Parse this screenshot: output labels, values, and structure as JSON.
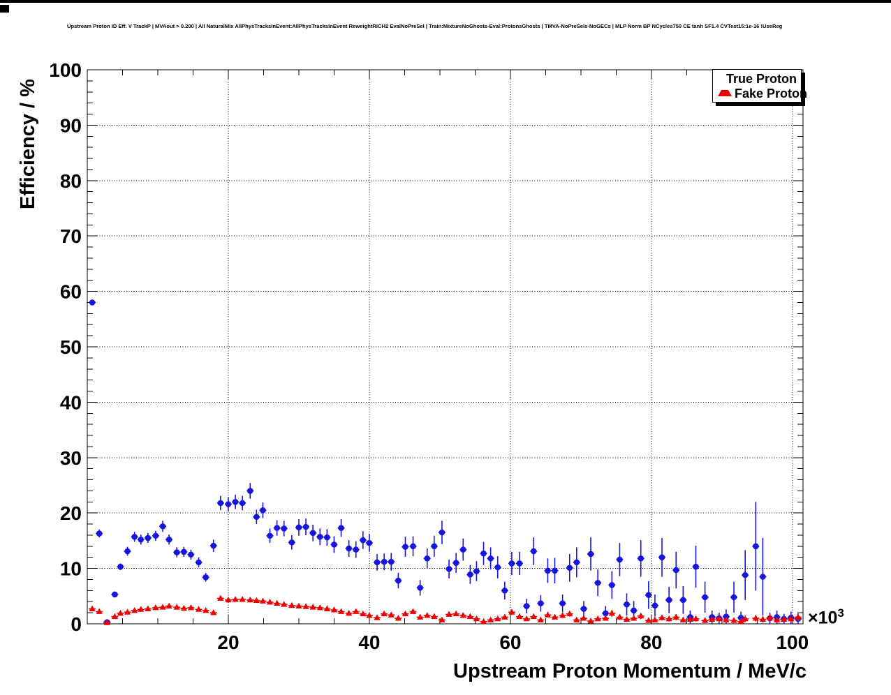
{
  "plot_title": "Upstream Proton ID Eff. V TrackP | MVAout > 0.200 | All NaturalMix AllPhysTracksInEvent:AllPhysTracksInEvent ReweightRICH2 EvalNoPreSel | Train:MixtureNoGhosts-Eval:ProtonsGhosts | TMVA-NoPreSels-NoGECs | MLP Norm BP NCycles750 CE tanh SF1.4 CVTest15:1e-16 !UseReg",
  "colors": {
    "true_proton": "#1515dd",
    "fake_proton": "#ee0000",
    "axis": "#000000",
    "background": "#ffffff"
  },
  "legend": {
    "entries": [
      {
        "label": "True Proton",
        "marker": "circle-icon",
        "color": "#1515dd"
      },
      {
        "label": "Fake Proton",
        "marker": "triangle-icon",
        "color": "#ee0000"
      }
    ]
  },
  "chart_data": {
    "type": "scatter",
    "title": "Upstream Proton ID Eff. V TrackP | MVAout > 0.200",
    "xlabel": "Upstream Proton Momentum / MeV/c",
    "ylabel": "Efficiency / %",
    "x_multiplier": "×10",
    "x_multiplier_exp": "3",
    "xlim": [
      0,
      101.5
    ],
    "ylim": [
      0,
      100
    ],
    "x_ticks": [
      20,
      40,
      60,
      80,
      100
    ],
    "y_ticks": [
      0,
      10,
      20,
      30,
      40,
      50,
      60,
      70,
      80,
      90,
      100
    ],
    "x_minor_step": 5,
    "y_minor_step": 2,
    "grid": true,
    "legend_position": "top-right",
    "series": [
      {
        "name": "True Proton",
        "marker": "circle",
        "color": "#1515dd",
        "points": [
          [
            0.7,
            58.0,
            0.5
          ],
          [
            1.7,
            16.3,
            0.7
          ],
          [
            2.8,
            0.3,
            0.3
          ],
          [
            3.9,
            5.3,
            0.5
          ],
          [
            4.7,
            10.3,
            0.6
          ],
          [
            5.7,
            13.1,
            0.8
          ],
          [
            6.7,
            15.7,
            0.9
          ],
          [
            7.6,
            15.2,
            0.9
          ],
          [
            8.6,
            15.5,
            0.9
          ],
          [
            9.7,
            15.9,
            0.9
          ],
          [
            10.7,
            17.6,
            1.0
          ],
          [
            11.6,
            15.2,
            0.9
          ],
          [
            12.7,
            12.9,
            0.9
          ],
          [
            13.7,
            13.0,
            0.9
          ],
          [
            14.7,
            12.5,
            0.9
          ],
          [
            15.8,
            11.1,
            0.9
          ],
          [
            16.8,
            8.4,
            0.8
          ],
          [
            17.9,
            14.1,
            1.1
          ],
          [
            18.9,
            21.8,
            1.3
          ],
          [
            20.0,
            21.6,
            1.3
          ],
          [
            21.0,
            22.0,
            1.3
          ],
          [
            22.0,
            21.8,
            1.3
          ],
          [
            23.1,
            24.0,
            1.4
          ],
          [
            24.0,
            19.3,
            1.3
          ],
          [
            24.9,
            20.5,
            1.4
          ],
          [
            25.9,
            15.9,
            1.3
          ],
          [
            26.9,
            17.3,
            1.4
          ],
          [
            27.9,
            17.2,
            1.4
          ],
          [
            29.0,
            14.7,
            1.3
          ],
          [
            30.0,
            17.4,
            1.5
          ],
          [
            31.0,
            17.5,
            1.5
          ],
          [
            32.0,
            16.4,
            1.5
          ],
          [
            33.0,
            15.7,
            1.5
          ],
          [
            34.0,
            15.6,
            1.5
          ],
          [
            35.0,
            14.3,
            1.5
          ],
          [
            36.0,
            17.3,
            1.6
          ],
          [
            37.1,
            13.6,
            1.5
          ],
          [
            38.1,
            13.4,
            1.5
          ],
          [
            39.1,
            15.1,
            1.6
          ],
          [
            40.0,
            14.6,
            1.6
          ],
          [
            41.1,
            11.1,
            1.5
          ],
          [
            42.1,
            11.2,
            1.5
          ],
          [
            43.1,
            11.2,
            1.6
          ],
          [
            44.1,
            7.8,
            1.4
          ],
          [
            45.1,
            13.9,
            1.8
          ],
          [
            46.2,
            14.0,
            1.8
          ],
          [
            47.2,
            6.5,
            1.4
          ],
          [
            48.2,
            11.8,
            1.8
          ],
          [
            49.2,
            14.0,
            1.9
          ],
          [
            50.3,
            16.5,
            2.1
          ],
          [
            51.3,
            9.9,
            1.7
          ],
          [
            52.3,
            11.0,
            1.8
          ],
          [
            53.3,
            13.4,
            2.0
          ],
          [
            54.3,
            8.9,
            1.7
          ],
          [
            55.2,
            9.5,
            1.8
          ],
          [
            56.2,
            12.7,
            2.1
          ],
          [
            57.2,
            11.8,
            2.0
          ],
          [
            58.2,
            10.2,
            2.0
          ],
          [
            59.2,
            6.0,
            1.6
          ],
          [
            60.2,
            10.9,
            2.1
          ],
          [
            61.3,
            10.9,
            2.1
          ],
          [
            62.3,
            3.2,
            1.3
          ],
          [
            63.3,
            13.1,
            2.5
          ],
          [
            64.3,
            3.7,
            1.5
          ],
          [
            65.3,
            9.6,
            2.2
          ],
          [
            66.3,
            9.6,
            2.3
          ],
          [
            67.4,
            3.7,
            1.6
          ],
          [
            68.4,
            10.1,
            2.5
          ],
          [
            69.4,
            11.1,
            2.7
          ],
          [
            70.4,
            2.7,
            1.4
          ],
          [
            71.4,
            12.6,
            3.0
          ],
          [
            72.4,
            7.4,
            2.4
          ],
          [
            73.5,
            1.9,
            1.3
          ],
          [
            74.4,
            7.0,
            2.5
          ],
          [
            75.5,
            11.6,
            3.0
          ],
          [
            76.5,
            3.5,
            2.0
          ],
          [
            77.5,
            2.4,
            1.7
          ],
          [
            78.5,
            11.8,
            3.3
          ],
          [
            79.6,
            5.2,
            2.5
          ],
          [
            80.5,
            3.3,
            2.0
          ],
          [
            81.5,
            12.0,
            3.5
          ],
          [
            82.5,
            4.3,
            2.4
          ],
          [
            83.5,
            9.7,
            3.3
          ],
          [
            84.5,
            4.3,
            2.5
          ],
          [
            85.5,
            1.2,
            1.2
          ],
          [
            86.3,
            10.3,
            3.8
          ],
          [
            87.6,
            4.8,
            2.8
          ],
          [
            88.6,
            1.2,
            1.2
          ],
          [
            89.6,
            1.0,
            1.0
          ],
          [
            90.6,
            1.3,
            1.3
          ],
          [
            91.7,
            4.8,
            2.8
          ],
          [
            92.7,
            1.1,
            1.1
          ],
          [
            93.3,
            8.8,
            4.5
          ],
          [
            94.8,
            14.0,
            8.0
          ],
          [
            95.8,
            8.5,
            7.0
          ],
          [
            96.8,
            1.0,
            1.0
          ],
          [
            97.8,
            1.2,
            1.2
          ],
          [
            98.8,
            0.9,
            0.9
          ],
          [
            99.8,
            1.1,
            1.1
          ],
          [
            100.8,
            0.9,
            0.9
          ]
        ]
      },
      {
        "name": "Fake Proton",
        "marker": "triangle",
        "color": "#ee0000",
        "points": [
          [
            0.7,
            2.7,
            0.35
          ],
          [
            1.7,
            2.2,
            0.3
          ],
          [
            2.8,
            0.2,
            0.15
          ],
          [
            3.9,
            1.3,
            0.2
          ],
          [
            4.7,
            1.9,
            0.25
          ],
          [
            5.7,
            2.1,
            0.25
          ],
          [
            6.7,
            2.4,
            0.25
          ],
          [
            7.6,
            2.6,
            0.3
          ],
          [
            8.6,
            2.7,
            0.3
          ],
          [
            9.7,
            2.9,
            0.3
          ],
          [
            10.7,
            3.0,
            0.3
          ],
          [
            11.6,
            3.2,
            0.3
          ],
          [
            12.7,
            3.0,
            0.3
          ],
          [
            13.7,
            2.8,
            0.3
          ],
          [
            14.7,
            2.9,
            0.3
          ],
          [
            15.8,
            2.6,
            0.3
          ],
          [
            16.8,
            2.4,
            0.3
          ],
          [
            17.9,
            2.0,
            0.3
          ],
          [
            18.9,
            4.6,
            0.4
          ],
          [
            20.0,
            4.3,
            0.4
          ],
          [
            21.0,
            4.4,
            0.4
          ],
          [
            22.0,
            4.4,
            0.4
          ],
          [
            23.1,
            4.3,
            0.4
          ],
          [
            24.0,
            4.2,
            0.4
          ],
          [
            24.9,
            4.1,
            0.4
          ],
          [
            25.9,
            3.9,
            0.4
          ],
          [
            26.9,
            3.7,
            0.4
          ],
          [
            27.9,
            3.5,
            0.4
          ],
          [
            29.0,
            3.3,
            0.4
          ],
          [
            30.0,
            3.2,
            0.4
          ],
          [
            31.0,
            3.1,
            0.4
          ],
          [
            32.0,
            3.0,
            0.4
          ],
          [
            33.0,
            2.9,
            0.4
          ],
          [
            34.0,
            2.7,
            0.35
          ],
          [
            35.0,
            2.5,
            0.35
          ],
          [
            36.0,
            2.2,
            0.35
          ],
          [
            37.1,
            1.9,
            0.3
          ],
          [
            38.1,
            2.2,
            0.35
          ],
          [
            39.1,
            1.8,
            0.3
          ],
          [
            40.0,
            1.5,
            0.3
          ],
          [
            41.1,
            1.1,
            0.25
          ],
          [
            42.1,
            1.8,
            0.3
          ],
          [
            43.1,
            1.6,
            0.3
          ],
          [
            44.1,
            1.0,
            0.25
          ],
          [
            45.1,
            1.8,
            0.35
          ],
          [
            46.2,
            2.2,
            0.4
          ],
          [
            47.2,
            1.2,
            0.3
          ],
          [
            48.2,
            1.5,
            0.35
          ],
          [
            49.2,
            1.3,
            0.3
          ],
          [
            50.3,
            0.7,
            0.25
          ],
          [
            51.3,
            1.7,
            0.4
          ],
          [
            52.3,
            1.8,
            0.4
          ],
          [
            53.3,
            1.5,
            0.35
          ],
          [
            54.3,
            1.3,
            0.35
          ],
          [
            55.2,
            0.9,
            0.3
          ],
          [
            56.2,
            0.4,
            0.2
          ],
          [
            57.2,
            0.7,
            0.3
          ],
          [
            58.2,
            0.9,
            0.3
          ],
          [
            59.2,
            1.2,
            0.35
          ],
          [
            60.2,
            2.1,
            0.5
          ],
          [
            61.3,
            1.3,
            0.4
          ],
          [
            62.3,
            0.9,
            0.35
          ],
          [
            63.3,
            1.3,
            0.4
          ],
          [
            64.3,
            0.7,
            0.3
          ],
          [
            65.3,
            1.6,
            0.45
          ],
          [
            66.3,
            1.2,
            0.4
          ],
          [
            67.4,
            1.5,
            0.45
          ],
          [
            68.4,
            1.8,
            0.5
          ],
          [
            69.4,
            0.7,
            0.35
          ],
          [
            70.4,
            1.0,
            0.4
          ],
          [
            71.4,
            0.5,
            0.3
          ],
          [
            72.4,
            0.9,
            0.4
          ],
          [
            73.5,
            1.0,
            0.4
          ],
          [
            74.4,
            1.9,
            0.6
          ],
          [
            75.5,
            1.2,
            0.5
          ],
          [
            76.5,
            0.8,
            0.4
          ],
          [
            77.5,
            1.0,
            0.45
          ],
          [
            78.5,
            1.4,
            0.55
          ],
          [
            79.6,
            0.6,
            0.4
          ],
          [
            80.5,
            0.7,
            0.4
          ],
          [
            81.5,
            1.1,
            0.5
          ],
          [
            82.5,
            0.9,
            0.5
          ],
          [
            83.5,
            1.2,
            0.55
          ],
          [
            84.5,
            0.7,
            0.45
          ],
          [
            85.5,
            0.8,
            0.5
          ],
          [
            86.3,
            0.9,
            0.5
          ],
          [
            87.6,
            0.6,
            0.45
          ],
          [
            88.6,
            0.8,
            0.5
          ],
          [
            89.6,
            0.9,
            0.55
          ],
          [
            90.6,
            0.7,
            0.5
          ],
          [
            91.7,
            0.6,
            0.45
          ],
          [
            92.7,
            0.4,
            0.35
          ],
          [
            93.3,
            0.9,
            0.6
          ],
          [
            94.8,
            1.0,
            0.6
          ],
          [
            95.8,
            0.8,
            0.55
          ],
          [
            96.8,
            1.1,
            0.65
          ],
          [
            97.8,
            0.7,
            0.5
          ],
          [
            98.8,
            0.8,
            0.55
          ],
          [
            99.8,
            0.9,
            0.6
          ],
          [
            100.8,
            1.2,
            0.7
          ]
        ]
      }
    ]
  }
}
